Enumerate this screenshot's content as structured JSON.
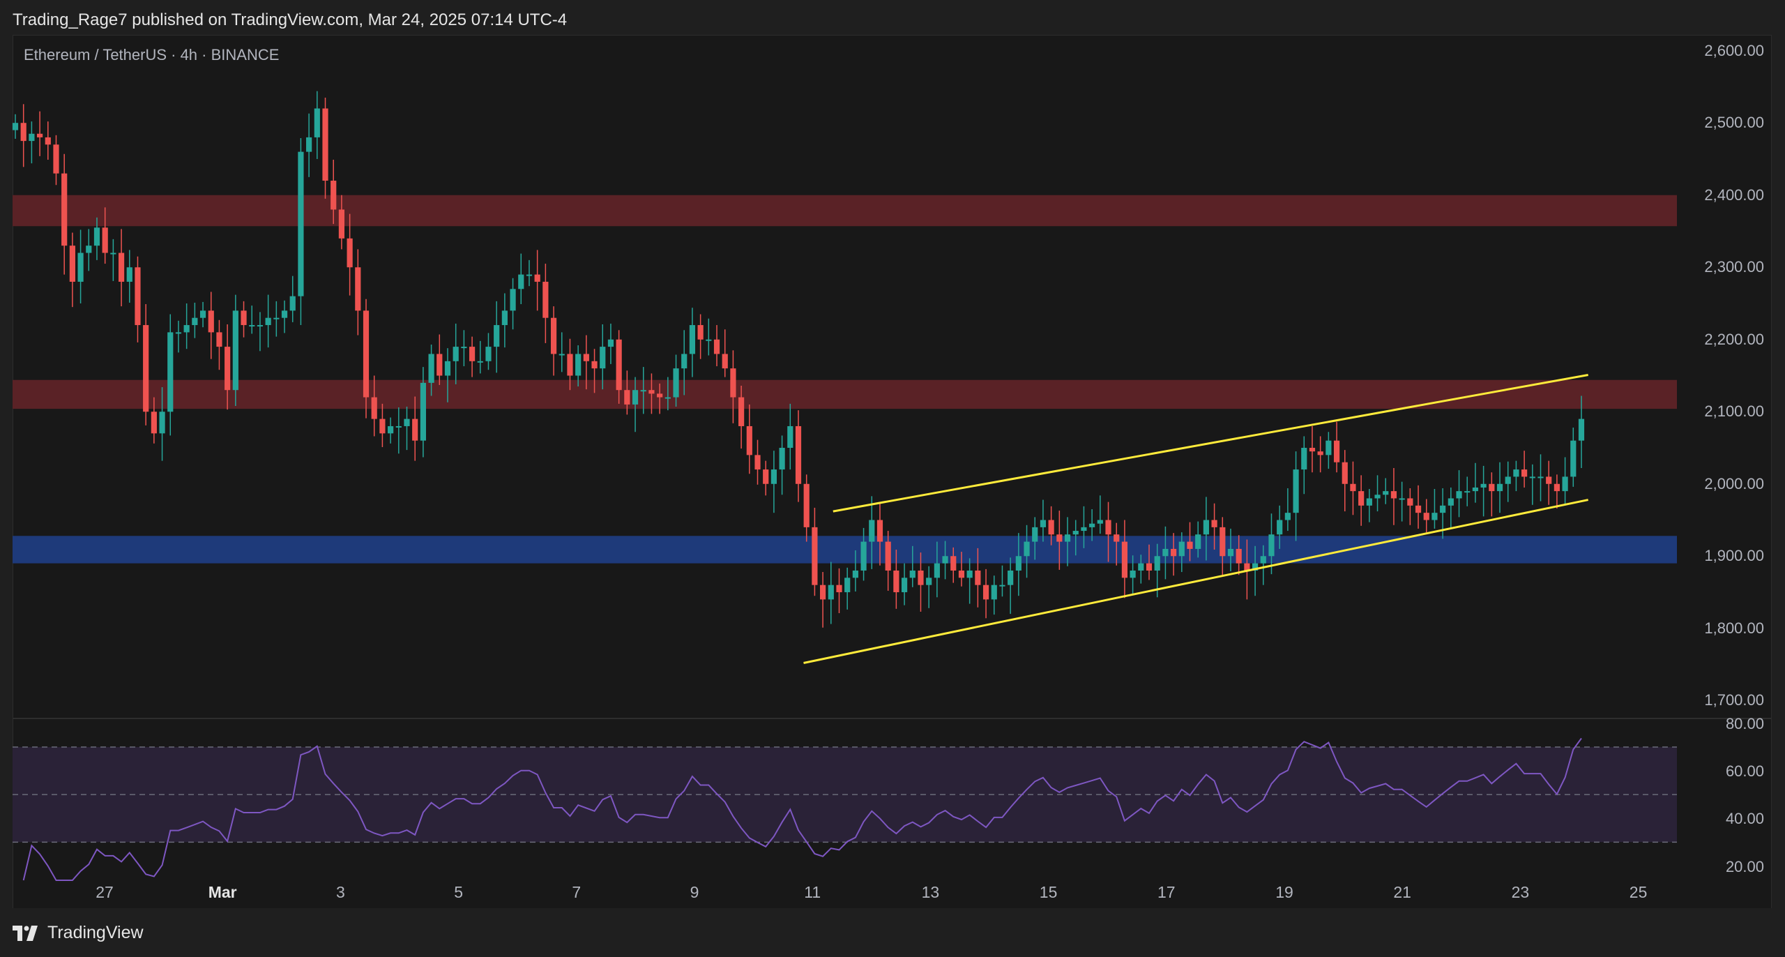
{
  "header": {
    "publish_text": "Trading_Rage7 published on TradingView.com, Mar 24, 2025 07:14 UTC-4"
  },
  "symbol_title": "Ethereum / TetherUS · 4h · BINANCE",
  "footer": {
    "brand": "TradingView"
  },
  "colors": {
    "up": "#26a69a",
    "down": "#ef5350",
    "resistance_zone": "#5a2226",
    "support_zone": "#1e3a7a",
    "channel": "#ffeb3b",
    "rsi_line": "#7e57c2",
    "rsi_band": "#2a2237"
  },
  "chart_data": [
    {
      "type": "candlestick",
      "title": "",
      "price_axis_labels": [
        "2,600.00",
        "2,500.00",
        "2,400.00",
        "2,300.00",
        "2,200.00",
        "2,100.00",
        "2,000.00",
        "1,900.00",
        "1,800.00",
        "1,700.00"
      ],
      "price_axis_values": [
        2600,
        2500,
        2400,
        2300,
        2200,
        2100,
        2000,
        1900,
        1800,
        1700
      ],
      "x_tick_labels": [
        {
          "label": "27",
          "day": 0,
          "bold": false
        },
        {
          "label": "Mar",
          "day": 2,
          "bold": true
        },
        {
          "label": "3",
          "day": 4,
          "bold": false
        },
        {
          "label": "5",
          "day": 6,
          "bold": false
        },
        {
          "label": "7",
          "day": 8,
          "bold": false
        },
        {
          "label": "9",
          "day": 10,
          "bold": false
        },
        {
          "label": "11",
          "day": 12,
          "bold": false
        },
        {
          "label": "13",
          "day": 14,
          "bold": false
        },
        {
          "label": "15",
          "day": 16,
          "bold": false
        },
        {
          "label": "17",
          "day": 18,
          "bold": false
        },
        {
          "label": "19",
          "day": 20,
          "bold": false
        },
        {
          "label": "21",
          "day": 22,
          "bold": false
        },
        {
          "label": "23",
          "day": 24,
          "bold": false
        },
        {
          "label": "25",
          "day": 26,
          "bold": false
        }
      ],
      "ylim": [
        1680,
        2620
      ],
      "zones": [
        {
          "kind": "resistance",
          "low": 2357,
          "high": 2400
        },
        {
          "kind": "resistance",
          "low": 2104,
          "high": 2144
        },
        {
          "kind": "support",
          "low": 1890,
          "high": 1928
        }
      ],
      "channel_lines": [
        {
          "start": {
            "day": 11.85,
            "price": 1752
          },
          "end": {
            "day": 25.15,
            "price": 1978
          }
        },
        {
          "start": {
            "day": 12.35,
            "price": 1962
          },
          "end": {
            "day": 25.15,
            "price": 2151
          }
        }
      ],
      "series_closes": [
        2500,
        2475,
        2485,
        2480,
        2470,
        2430,
        2330,
        2280,
        2320,
        2330,
        2355,
        2320,
        2320,
        2280,
        2300,
        2220,
        2100,
        2070,
        2100,
        2210,
        2210,
        2220,
        2230,
        2240,
        2210,
        2190,
        2130,
        2240,
        2220,
        2220,
        2220,
        2230,
        2230,
        2240,
        2260,
        2460,
        2480,
        2520,
        2420,
        2380,
        2340,
        2300,
        2240,
        2120,
        2090,
        2070,
        2080,
        2080,
        2090,
        2060,
        2140,
        2180,
        2150,
        2170,
        2190,
        2190,
        2170,
        2170,
        2190,
        2220,
        2240,
        2270,
        2290,
        2290,
        2280,
        2230,
        2180,
        2180,
        2150,
        2180,
        2170,
        2160,
        2190,
        2200,
        2130,
        2110,
        2130,
        2130,
        2125,
        2120,
        2120,
        2160,
        2180,
        2220,
        2200,
        2200,
        2180,
        2160,
        2120,
        2080,
        2040,
        2020,
        2000,
        2020,
        2050,
        2080,
        2000,
        1940,
        1860,
        1840,
        1860,
        1850,
        1870,
        1880,
        1920,
        1950,
        1920,
        1880,
        1850,
        1870,
        1880,
        1860,
        1870,
        1890,
        1900,
        1880,
        1870,
        1880,
        1860,
        1840,
        1860,
        1860,
        1880,
        1900,
        1920,
        1940,
        1950,
        1930,
        1920,
        1930,
        1935,
        1940,
        1945,
        1950,
        1930,
        1920,
        1870,
        1880,
        1890,
        1880,
        1900,
        1910,
        1900,
        1920,
        1910,
        1930,
        1950,
        1940,
        1900,
        1910,
        1890,
        1880,
        1890,
        1900,
        1930,
        1950,
        1960,
        2020,
        2050,
        2045,
        2040,
        2060,
        2030,
        2000,
        1990,
        1970,
        1980,
        1985,
        1990,
        1980,
        1980,
        1970,
        1960,
        1950,
        1960,
        1970,
        1980,
        1990,
        1990,
        1995,
        2000,
        1990,
        2000,
        2010,
        2020,
        2010,
        2010,
        2010,
        2000,
        1990,
        2010,
        2060,
        2090
      ],
      "rsi_axis_labels": [
        "80.00",
        "60.00",
        "40.00",
        "20.00"
      ],
      "rsi_axis_values": [
        80,
        60,
        40,
        20
      ],
      "rsi_levels": {
        "upper": 70,
        "middle": 50,
        "lower": 30
      },
      "rsi_ylim": [
        14,
        82
      ]
    }
  ]
}
